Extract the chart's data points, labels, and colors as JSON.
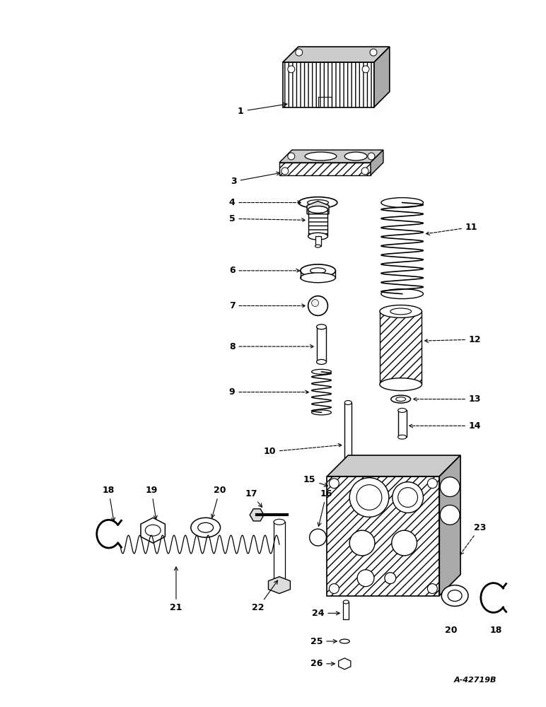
{
  "bg_color": "#ffffff",
  "line_color": "#000000",
  "fig_width": 7.72,
  "fig_height": 10.0,
  "watermark": "A-42719B"
}
